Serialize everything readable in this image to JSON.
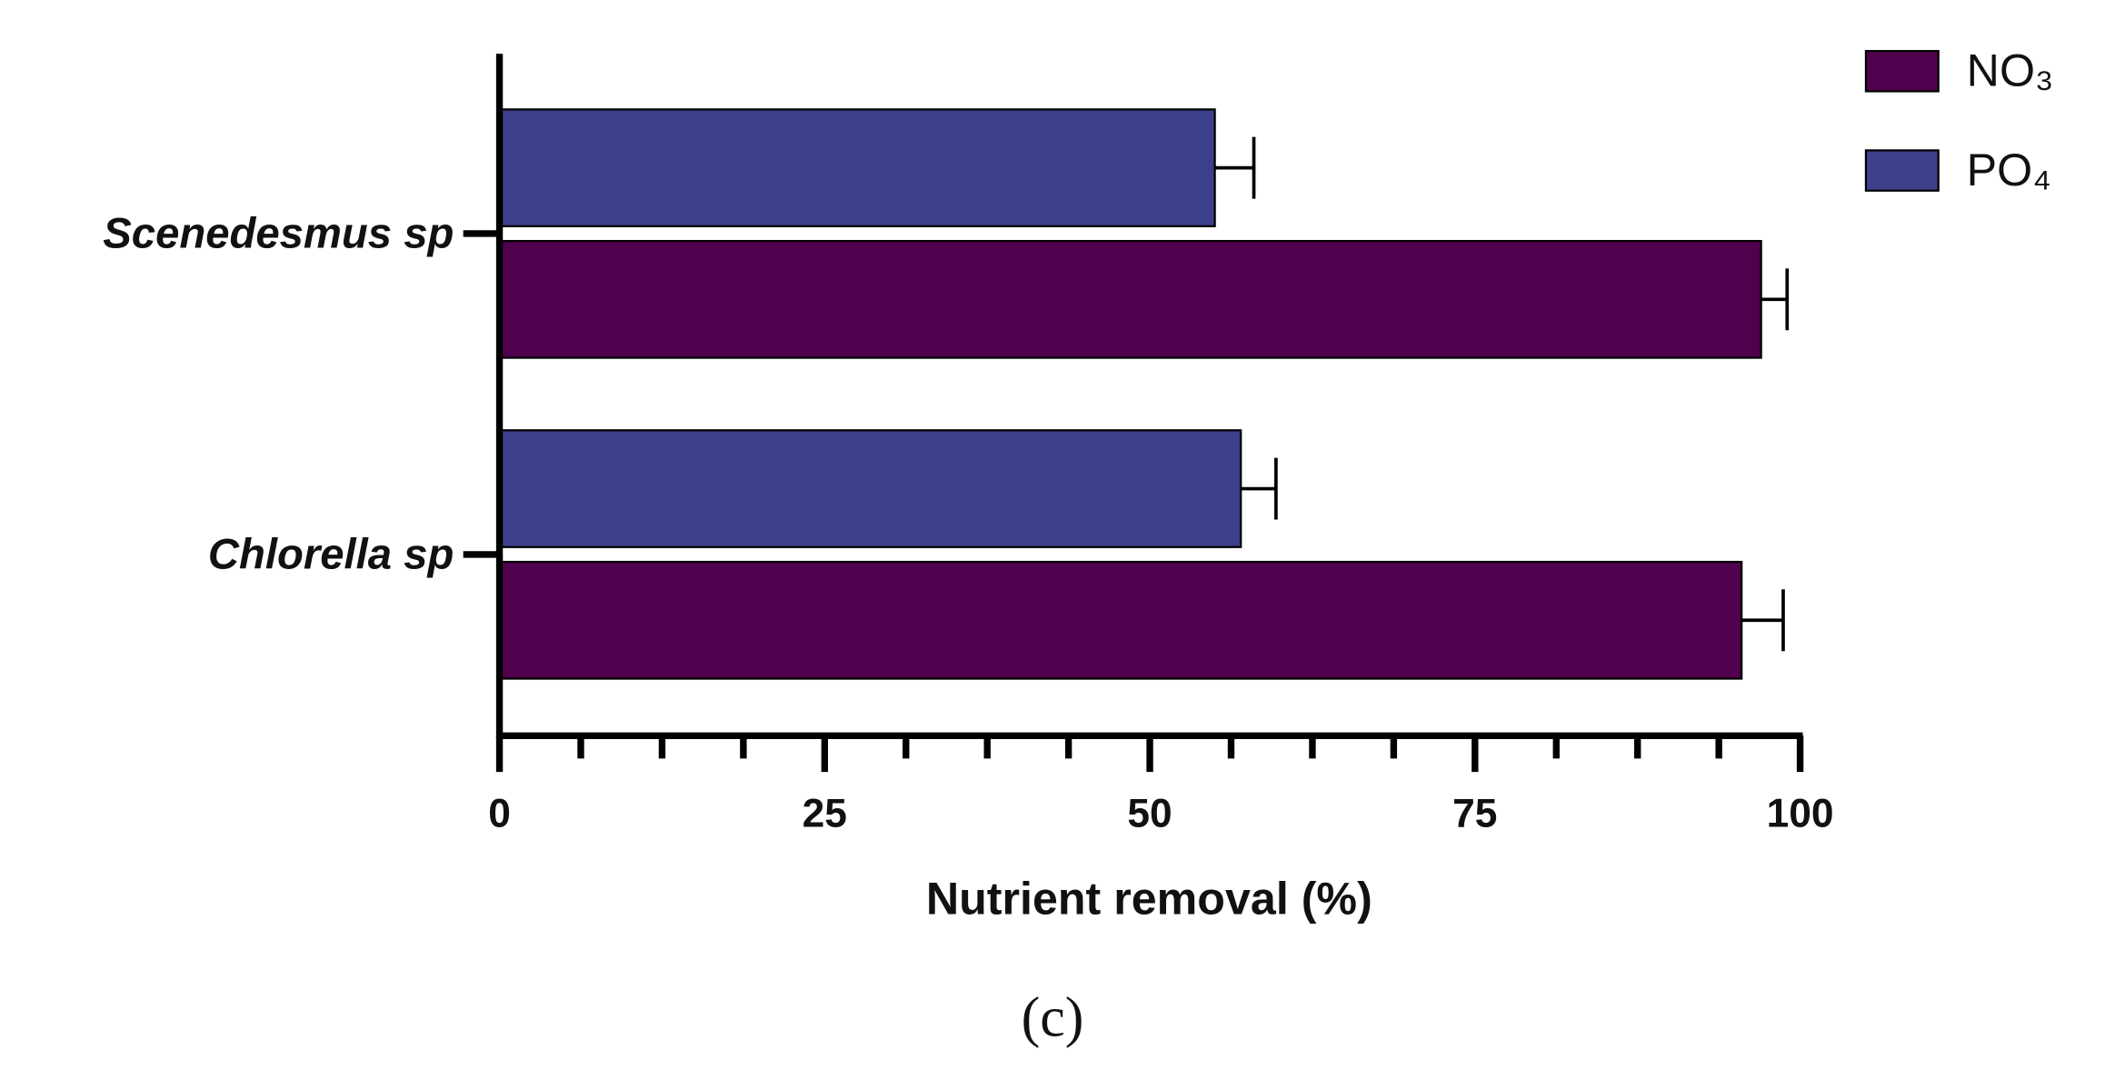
{
  "chart_data": {
    "type": "hbar",
    "categories": [
      "Scenedesmus sp",
      "Chlorella sp"
    ],
    "series": [
      {
        "name": "NO₃",
        "color": "#50004c",
        "values": [
          97,
          95.5
        ],
        "errors": [
          2,
          3.2
        ]
      },
      {
        "name": "PO₄",
        "color": "#3c3f8a",
        "values": [
          55,
          57
        ],
        "errors": [
          3,
          2.7
        ]
      }
    ],
    "xlabel": "Nutrient removal (%)",
    "xlim": [
      0,
      100
    ],
    "xticks": [
      0,
      25,
      50,
      75,
      100
    ],
    "xminorticks": [
      6.25,
      12.5,
      18.75,
      31.25,
      37.5,
      43.75,
      56.25,
      62.5,
      68.75,
      81.25,
      87.5,
      93.75
    ],
    "legend": "top-right",
    "caption": "(c)"
  }
}
